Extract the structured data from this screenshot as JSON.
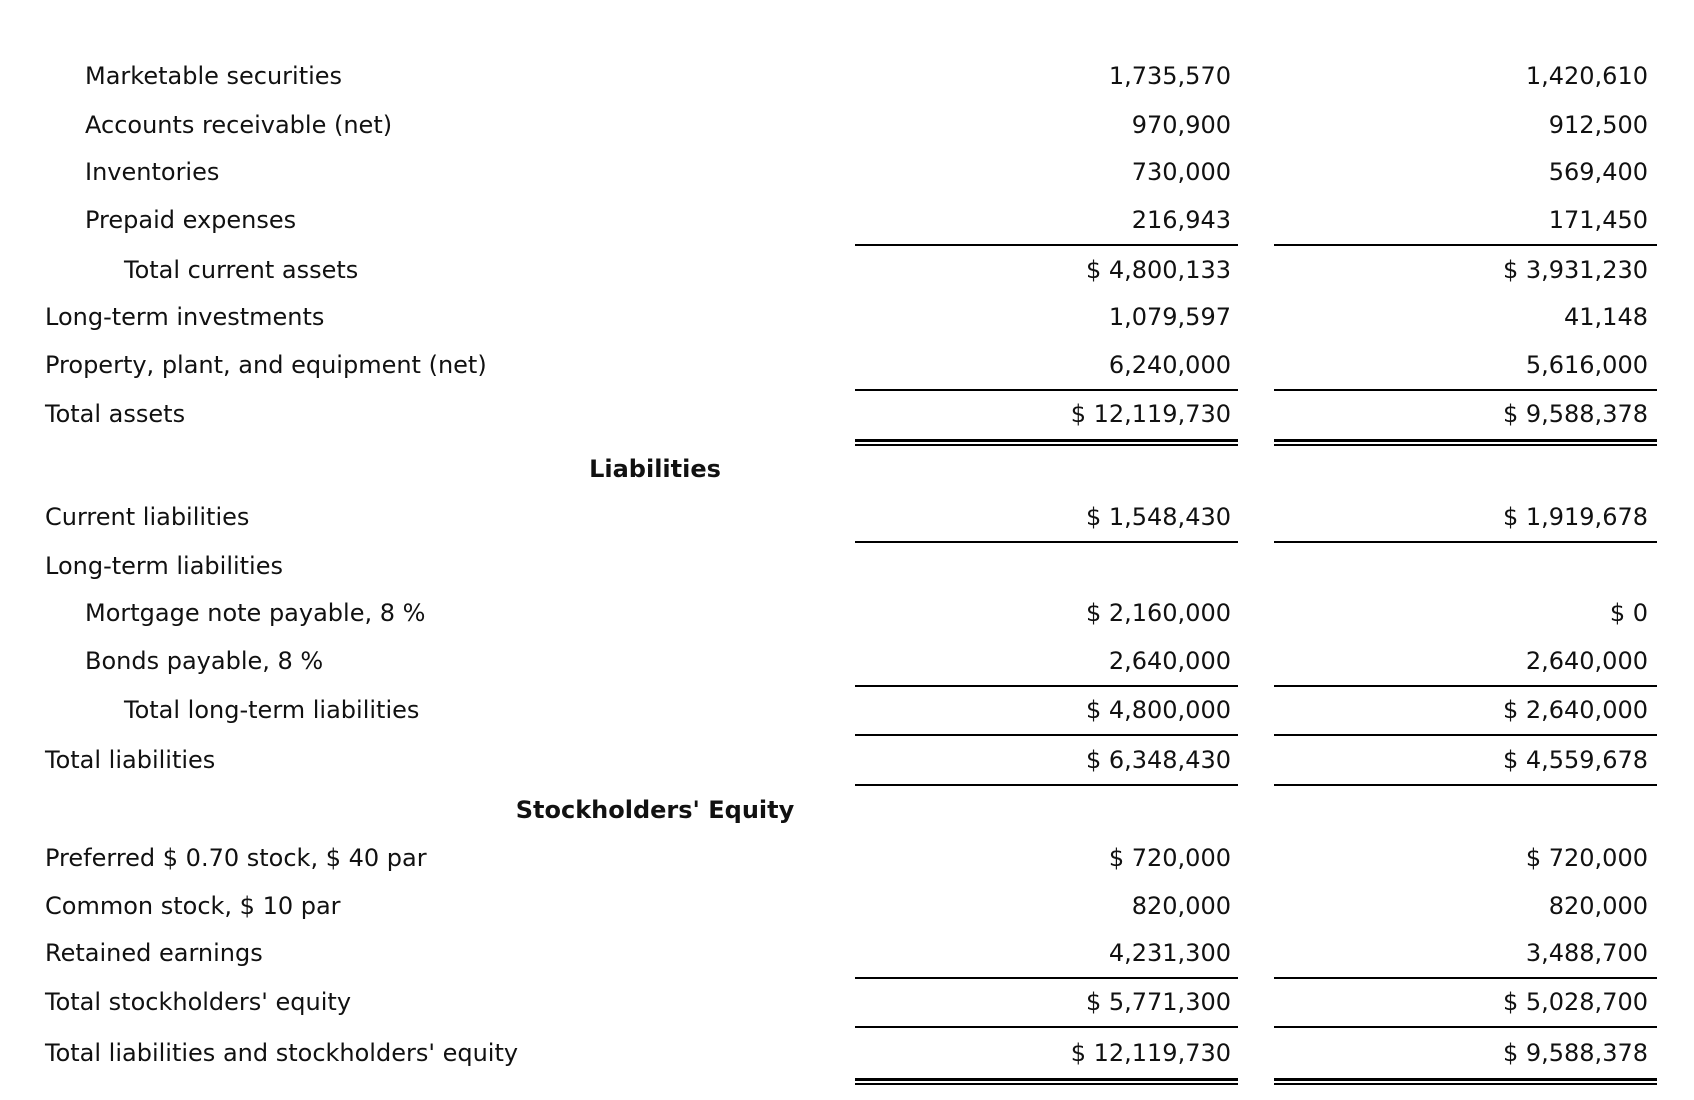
{
  "rows": [
    {
      "label": "Marketable securities",
      "indent": 1,
      "values": [
        "1,735,570",
        "1,420,610"
      ]
    },
    {
      "label": "Accounts receivable (net)",
      "indent": 1,
      "values": [
        "970,900",
        "912,500"
      ]
    },
    {
      "label": "Inventories",
      "indent": 1,
      "values": [
        "730,000",
        "569,400"
      ]
    },
    {
      "label": "Prepaid expenses",
      "indent": 1,
      "values": [
        "216,943",
        "171,450"
      ],
      "rule": "single"
    },
    {
      "label": "Total current assets",
      "indent": 2,
      "values": [
        "$ 4,800,133",
        "$ 3,931,230"
      ]
    },
    {
      "label": "Long-term investments",
      "indent": 0,
      "values": [
        "1,079,597",
        "41,148"
      ]
    },
    {
      "label": "Property, plant, and equipment (net)",
      "indent": 0,
      "values": [
        "6,240,000",
        "5,616,000"
      ],
      "rule": "single"
    },
    {
      "label": "Total assets",
      "indent": 0,
      "values": [
        "$ 12,119,730",
        "$ 9,588,378"
      ],
      "rule": "double"
    },
    {
      "heading": "Liabilities"
    },
    {
      "label": "Current liabilities",
      "indent": 0,
      "values": [
        "$ 1,548,430",
        "$ 1,919,678"
      ],
      "rule": "single"
    },
    {
      "label": "Long-term liabilities",
      "indent": 0,
      "values": [
        "",
        ""
      ]
    },
    {
      "label": "Mortgage note payable, 8 %",
      "indent": 1,
      "values": [
        "$ 2,160,000",
        "$ 0"
      ]
    },
    {
      "label": "Bonds payable, 8 %",
      "indent": 1,
      "values": [
        "2,640,000",
        "2,640,000"
      ],
      "rule": "single"
    },
    {
      "label": "Total long-term liabilities",
      "indent": 2,
      "values": [
        "$ 4,800,000",
        "$ 2,640,000"
      ],
      "rule": "single"
    },
    {
      "label": "Total liabilities",
      "indent": 0,
      "values": [
        "$ 6,348,430",
        "$ 4,559,678"
      ],
      "rule": "single"
    },
    {
      "heading": "Stockholders' Equity"
    },
    {
      "label": "Preferred $ 0.70 stock, $ 40 par",
      "indent": 0,
      "values": [
        "$ 720,000",
        "$ 720,000"
      ]
    },
    {
      "label": "Common stock, $ 10 par",
      "indent": 0,
      "values": [
        "820,000",
        "820,000"
      ]
    },
    {
      "label": "Retained earnings",
      "indent": 0,
      "values": [
        "4,231,300",
        "3,488,700"
      ],
      "rule": "single"
    },
    {
      "label": "Total stockholders' equity",
      "indent": 0,
      "values": [
        "$ 5,771,300",
        "$ 5,028,700"
      ],
      "rule": "single"
    },
    {
      "label": "Total liabilities and stockholders' equity",
      "indent": 0,
      "values": [
        "$ 12,119,730",
        "$ 9,588,378"
      ],
      "rule": "double"
    }
  ]
}
